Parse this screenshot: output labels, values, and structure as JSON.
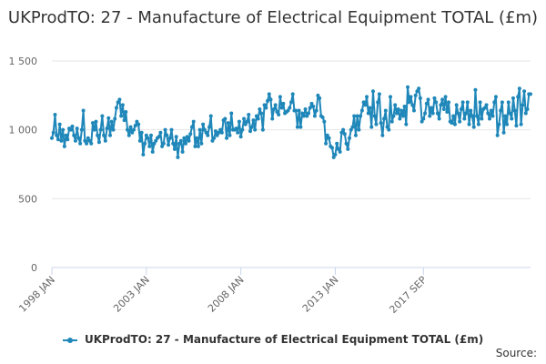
{
  "colors": {
    "series": "#1f87b9",
    "grid": "#e6e6e6",
    "axis": "#ccd6eb",
    "text": "#333333",
    "tick_text": "#666666"
  },
  "source_label": "Source:",
  "chart_data": {
    "type": "line",
    "title": "UKProdTO: 27 - Manufacture of Electrical Equipment TOTAL (£m)",
    "xlabel": "",
    "ylabel": "",
    "ylim": [
      0,
      1500
    ],
    "y_ticks": [
      0,
      500,
      1000,
      1500
    ],
    "y_tick_labels": [
      "0",
      "500",
      "1 000",
      "1 500"
    ],
    "x_tick_labels": [
      "1998 JAN",
      "2003 JAN",
      "2008 JAN",
      "2013 JAN",
      "2017 SEP"
    ],
    "x_tick_dates": [
      "1998-01",
      "2003-01",
      "2008-01",
      "2013-01",
      "2017-09"
    ],
    "grid": true,
    "legend": "bottom-center",
    "series": [
      {
        "name": "UKProdTO: 27 - Manufacture of Electrical Equipment TOTAL (£m)",
        "start": "1998-01",
        "frequency": "monthly",
        "values": [
          940,
          980,
          1110,
          960,
          930,
          1040,
          920,
          1000,
          880,
          960,
          930,
          1010,
          1000,
          1025,
          960,
          920,
          1010,
          940,
          900,
          1000,
          1140,
          920,
          900,
          940,
          920,
          900,
          1050,
          1000,
          1060,
          960,
          910,
          1000,
          1100,
          960,
          920,
          1010,
          1085,
          960,
          1060,
          1000,
          1080,
          1160,
          1200,
          1220,
          1100,
          1180,
          1070,
          1130,
          1000,
          960,
          1020,
          980,
          1000,
          1030,
          1060,
          1040,
          920,
          980,
          820,
          900,
          960,
          940,
          880,
          960,
          840,
          900,
          920,
          940,
          950,
          980,
          880,
          900,
          1000,
          960,
          890,
          940,
          1000,
          900,
          860,
          950,
          800,
          900,
          920,
          840,
          940,
          900,
          950,
          920,
          970,
          1020,
          1060,
          880,
          940,
          880,
          1000,
          900,
          1040,
          1000,
          980,
          960,
          1020,
          1100,
          920,
          940,
          990,
          960,
          980,
          1000,
          980,
          1070,
          1080,
          940,
          1050,
          960,
          1120,
          1000,
          1000,
          1010,
          980,
          1060,
          950,
          1000,
          1080,
          1040,
          1060,
          1110,
          990,
          1020,
          1070,
          1000,
          1100,
          1080,
          1150,
          1120,
          1000,
          1180,
          1160,
          1210,
          1260,
          1220,
          1080,
          1150,
          1180,
          1130,
          1110,
          1240,
          1160,
          1190,
          1120,
          1130,
          1140,
          1160,
          1200,
          1260,
          1140,
          1140,
          1020,
          1140,
          1020,
          1120,
          1100,
          1150,
          1100,
          1120,
          1160,
          1190,
          1170,
          1100,
          1140,
          1250,
          1230,
          1100,
          1090,
          1060,
          900,
          960,
          940,
          880,
          870,
          800,
          820,
          900,
          860,
          840,
          980,
          1000,
          970,
          900,
          860,
          940,
          1000,
          1020,
          1100,
          960,
          1100,
          1000,
          1100,
          1140,
          1200,
          1180,
          1240,
          1120,
          1160,
          1020,
          1280,
          1100,
          1040,
          1200,
          1260,
          1050,
          960,
          1080,
          1140,
          1020,
          1000,
          1240,
          1060,
          1100,
          1180,
          1120,
          1150,
          1080,
          1140,
          1100,
          1170,
          1040,
          1310,
          1200,
          1240,
          1180,
          1140,
          1250,
          1280,
          1300,
          1230,
          1060,
          1080,
          1120,
          1190,
          1220,
          1100,
          1160,
          1120,
          1230,
          1200,
          1120,
          1080,
          1180,
          1220,
          1150,
          1240,
          1130,
          1200,
          1060,
          1050,
          1100,
          1040,
          1180,
          1120,
          1060,
          1150,
          1200,
          1080,
          1120,
          1200,
          1040,
          1140,
          1100,
          1020,
          1290,
          1100,
          1040,
          1200,
          1080,
          1150,
          1160,
          1180,
          1120,
          1080,
          1140,
          1100,
          1200,
          1240,
          960,
          1040,
          1140,
          1200,
          980,
          1100,
          1040,
          1200,
          1120,
          1080,
          1230,
          1140,
          1030,
          1240,
          1300,
          1040,
          1180,
          1280,
          1120,
          1150,
          1260,
          1260
        ]
      }
    ]
  }
}
